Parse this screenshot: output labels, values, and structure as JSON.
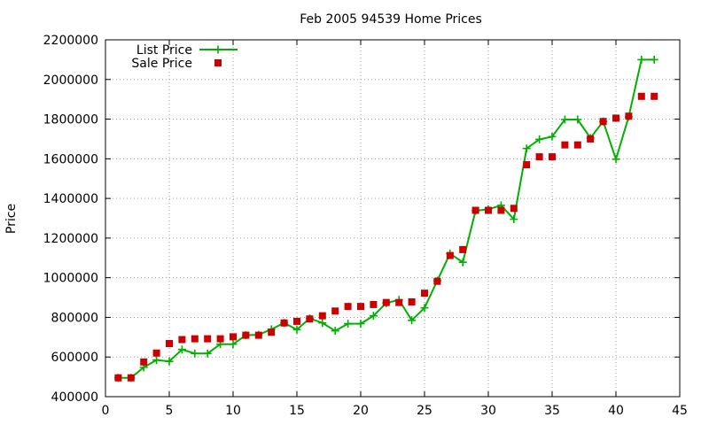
{
  "chart_data": {
    "type": "line",
    "title": "Feb 2005 94539 Home Prices",
    "ylabel": "Price",
    "xlabel": "",
    "xlim": [
      0,
      45
    ],
    "ylim": [
      400000,
      2200000
    ],
    "xticks": [
      0,
      5,
      10,
      15,
      20,
      25,
      30,
      35,
      40,
      45
    ],
    "yticks": [
      400000,
      600000,
      800000,
      1000000,
      1200000,
      1400000,
      1600000,
      1800000,
      2000000,
      2200000
    ],
    "xtick_labels": [
      "0",
      "5",
      "10",
      "15",
      "20",
      "25",
      "30",
      "35",
      "40",
      "45"
    ],
    "ytick_labels": [
      "400000",
      "600000",
      "800000",
      "1000000",
      "1200000",
      "1400000",
      "1600000",
      "1800000",
      "2000000",
      "2200000"
    ],
    "grid": true,
    "legend_position": "top-left",
    "series": [
      {
        "name": "List Price",
        "style": "line-plus",
        "color": "#00b000",
        "x": [
          1,
          2,
          3,
          4,
          5,
          6,
          7,
          8,
          9,
          10,
          11,
          12,
          13,
          14,
          15,
          16,
          17,
          18,
          19,
          20,
          21,
          22,
          23,
          24,
          25,
          26,
          27,
          28,
          29,
          30,
          31,
          32,
          33,
          34,
          35,
          36,
          37,
          38,
          39,
          40,
          41,
          42,
          43
        ],
        "y": [
          495000,
          495000,
          548000,
          585000,
          578000,
          638000,
          618000,
          618000,
          665000,
          665000,
          710000,
          712000,
          740000,
          772000,
          738000,
          795000,
          772000,
          732000,
          768000,
          768000,
          808000,
          872000,
          888000,
          785000,
          848000,
          985000,
          1122000,
          1078000,
          1338000,
          1345000,
          1365000,
          1295000,
          1652000,
          1698000,
          1712000,
          1798000,
          1798000,
          1705000,
          1788000,
          1598000,
          1812000,
          2100000,
          2100000
        ]
      },
      {
        "name": "Sale Price",
        "style": "square",
        "color": "#cc0000",
        "x": [
          1,
          2,
          3,
          4,
          5,
          6,
          7,
          8,
          9,
          10,
          11,
          12,
          13,
          14,
          15,
          16,
          17,
          18,
          19,
          20,
          21,
          22,
          23,
          24,
          25,
          26,
          27,
          28,
          29,
          30,
          31,
          32,
          33,
          34,
          35,
          36,
          37,
          38,
          39,
          40,
          41,
          42,
          43
        ],
        "y": [
          495000,
          495000,
          575000,
          620000,
          668000,
          688000,
          692000,
          692000,
          692000,
          702000,
          710000,
          710000,
          725000,
          772000,
          780000,
          792000,
          808000,
          832000,
          855000,
          855000,
          865000,
          875000,
          875000,
          878000,
          922000,
          982000,
          1112000,
          1142000,
          1340000,
          1340000,
          1340000,
          1350000,
          1570000,
          1610000,
          1610000,
          1670000,
          1670000,
          1700000,
          1788000,
          1805000,
          1815000,
          1915000,
          1915000
        ]
      }
    ]
  }
}
